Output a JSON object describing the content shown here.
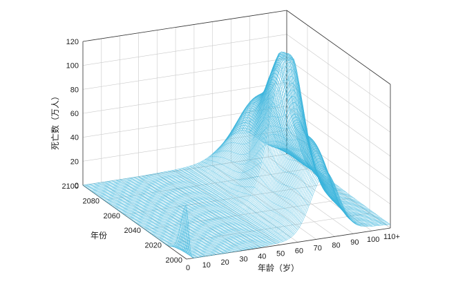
{
  "chart_data": {
    "type": "surface",
    "title": "",
    "zlabel": "死亡数（万人）",
    "ylabel": "年份",
    "xlabel": "年龄（岁）",
    "x_ticks": [
      "0",
      "10",
      "20",
      "30",
      "40",
      "50",
      "60",
      "70",
      "80",
      "90",
      "100",
      "110+"
    ],
    "y_ticks": [
      "2000",
      "2020",
      "2040",
      "2060",
      "2080",
      "2100"
    ],
    "z_ticks": [
      "0",
      "20",
      "40",
      "60",
      "80",
      "100",
      "120"
    ],
    "xlim": [
      0,
      110
    ],
    "ylim": [
      2000,
      2100
    ],
    "zlim": [
      0,
      120
    ],
    "grid": true,
    "surface_color": "#3ab4dc",
    "approximate_peaks": [
      {
        "year": 2045,
        "age": 80,
        "deaths": 117
      },
      {
        "year": 2055,
        "age": 82,
        "deaths": 105
      },
      {
        "year": 2065,
        "age": 84,
        "deaths": 100
      },
      {
        "year": 2035,
        "age": 78,
        "deaths": 85
      },
      {
        "year": 2005,
        "age": 75,
        "deaths": 50
      },
      {
        "year": 2100,
        "age": 85,
        "deaths": 20
      }
    ]
  }
}
